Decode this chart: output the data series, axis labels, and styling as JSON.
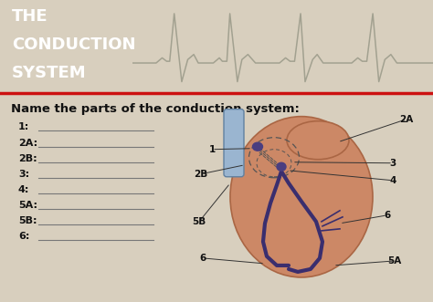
{
  "title_line1": "THE",
  "title_line2": "CONDUCTION",
  "title_line3": "SYSTEM",
  "title_bg": "#1a52c0",
  "title_text_color": "#ffffff",
  "subtitle": "Name the parts of the conduction system:",
  "labels_left": [
    "1:",
    "2A:",
    "2B:",
    "3:",
    "4:",
    "5A:",
    "5B:",
    "6:"
  ],
  "bg_color": "#d8cfbe",
  "body_bg": "#f0ece0",
  "heart_fill": "#cc8866",
  "heart_edge": "#aa6644",
  "vessel_fill": "#9ab5d0",
  "vessel_edge": "#6080a0",
  "nerve_color": "#3a2e6e",
  "node_color": "#4a3e80",
  "red_sep": "#cc1111",
  "ecg_line": "#999988",
  "label_color": "#111111",
  "line_color": "#555555",
  "dashed_color": "#555555"
}
